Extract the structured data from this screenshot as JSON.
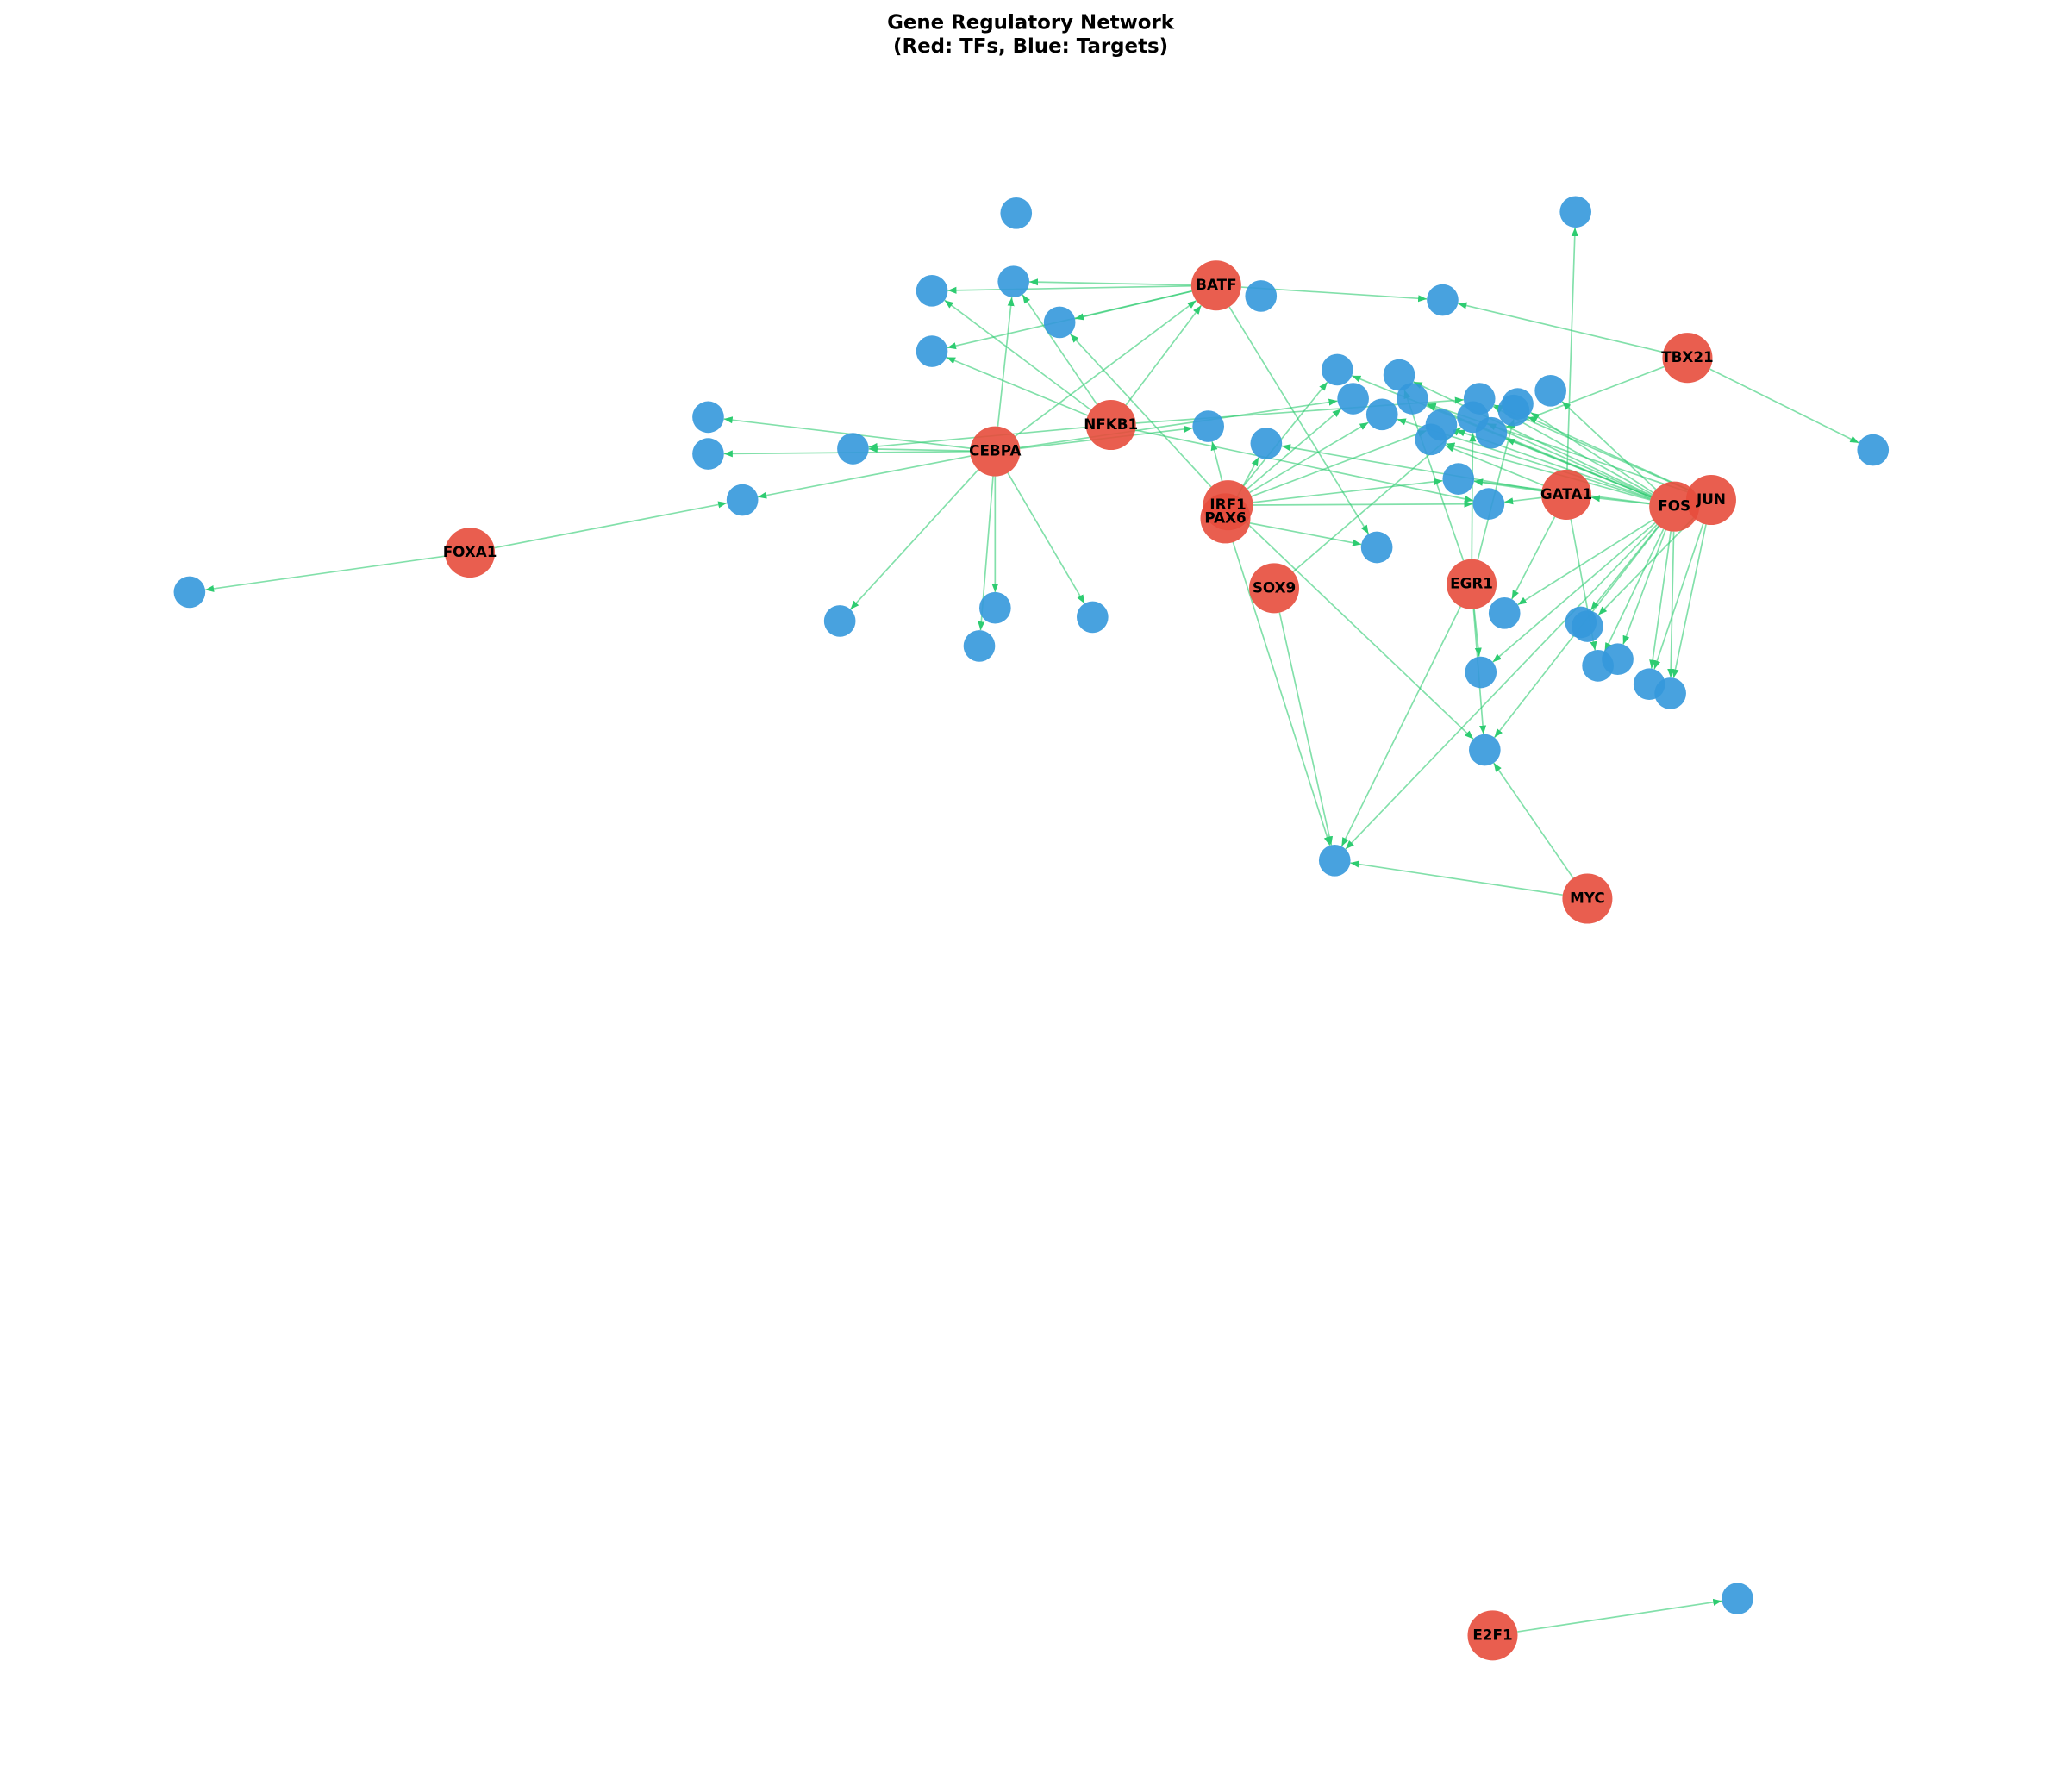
{
  "title": "Gene Regulatory Network",
  "subtitle": "(Red: TFs, Blue: Targets)",
  "nodes": [
    {
      "label": "BATF"
    },
    {
      "label": "TBX21"
    },
    {
      "label": "NFKB1"
    },
    {
      "label": "CEBPA"
    },
    {
      "label": "IRF1"
    },
    {
      "label": "PAX6"
    },
    {
      "label": "GATA1"
    },
    {
      "label": "FOS"
    },
    {
      "label": "JUN"
    },
    {
      "label": "FOXA1"
    },
    {
      "label": "SOX9"
    },
    {
      "label": "EGR1"
    },
    {
      "label": "MYC"
    },
    {
      "label": "E2F1"
    }
  ]
}
